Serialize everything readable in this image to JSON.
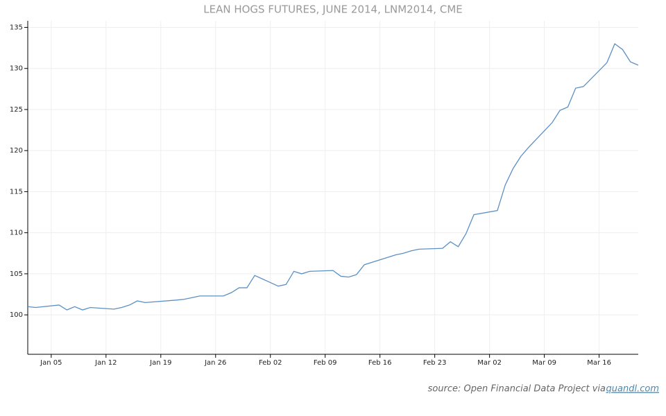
{
  "chart_data": {
    "type": "line",
    "title": "LEAN HOGS FUTURES, JUNE 2014, LNM2014, CME",
    "x": [
      "Jan 02",
      "Jan 03",
      "Jan 06",
      "Jan 07",
      "Jan 08",
      "Jan 09",
      "Jan 10",
      "Jan 13",
      "Jan 14",
      "Jan 15",
      "Jan 16",
      "Jan 17",
      "Jan 21",
      "Jan 22",
      "Jan 23",
      "Jan 24",
      "Jan 27",
      "Jan 28",
      "Jan 29",
      "Jan 30",
      "Jan 31",
      "Feb 03",
      "Feb 04",
      "Feb 05",
      "Feb 06",
      "Feb 07",
      "Feb 10",
      "Feb 11",
      "Feb 12",
      "Feb 13",
      "Feb 14",
      "Feb 18",
      "Feb 19",
      "Feb 20",
      "Feb 21",
      "Feb 24",
      "Feb 25",
      "Feb 26",
      "Feb 27",
      "Feb 28",
      "Mar 03",
      "Mar 04",
      "Mar 05",
      "Mar 06",
      "Mar 07",
      "Mar 10",
      "Mar 11",
      "Mar 12",
      "Mar 13",
      "Mar 14",
      "Mar 17",
      "Mar 18",
      "Mar 19",
      "Mar 20",
      "Mar 21"
    ],
    "values": [
      101.0,
      100.9,
      101.2,
      100.6,
      101.0,
      100.6,
      100.9,
      100.7,
      100.9,
      101.2,
      101.7,
      101.5,
      101.8,
      101.9,
      102.1,
      102.3,
      102.3,
      102.7,
      103.3,
      103.3,
      104.8,
      103.5,
      103.7,
      105.3,
      105.0,
      105.3,
      105.4,
      104.7,
      104.6,
      104.9,
      106.1,
      107.3,
      107.5,
      107.8,
      108.0,
      108.1,
      108.9,
      108.3,
      109.9,
      112.2,
      112.7,
      115.8,
      117.8,
      119.3,
      120.4,
      123.4,
      124.9,
      125.3,
      127.6,
      127.8,
      130.7,
      133.0,
      132.3,
      130.8,
      130.4
    ],
    "color": "#5b8fc4",
    "xlim": [
      "Jan 02",
      "Mar 21"
    ],
    "xticks": [
      "Jan 05",
      "Jan 12",
      "Jan 19",
      "Jan 26",
      "Feb 02",
      "Feb 09",
      "Feb 16",
      "Feb 23",
      "Mar 02",
      "Mar 09",
      "Mar 16"
    ],
    "ylim": [
      95.2,
      135.8
    ],
    "yticks": [
      100,
      105,
      110,
      115,
      120,
      125,
      130,
      135
    ],
    "grid": true,
    "source": {
      "text": "source: Open Financial Data Project via",
      "link": "quandl.com"
    }
  }
}
